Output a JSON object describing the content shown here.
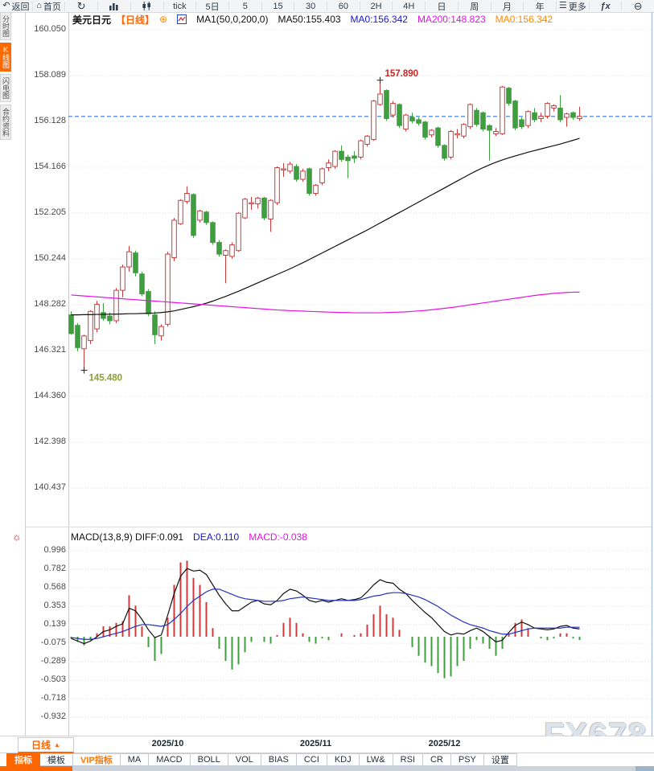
{
  "colors": {
    "accent_orange": "#ff6600",
    "up_red": "#cc3b3b",
    "down_green": "#3f9e3f",
    "ma50_black": "#111111",
    "ma200_magenta": "#e812e8",
    "dea_blue": "#2233bb",
    "diff_black": "#111111",
    "last_price_line_blue": "#2b7ce9",
    "annotation_red": "#cc2222",
    "annotation_olive": "#8f9c3a"
  },
  "toolbar": {
    "back": {
      "icon": "↶",
      "label": "返回"
    },
    "home": {
      "icon": "⌂",
      "label": "首页"
    },
    "refresh_icon": "↻",
    "tick_label": "tick",
    "periods": [
      "5日",
      "5",
      "15",
      "30",
      "60",
      "2H",
      "4H",
      "日",
      "周",
      "月",
      "年"
    ],
    "more": {
      "icon": "☰",
      "label": "更多"
    },
    "fx_label": "ƒx",
    "zoom_out_icon": "⊖"
  },
  "sidebar": {
    "items": [
      {
        "label": "分时图",
        "active": false
      },
      {
        "label": "K线图",
        "active": true
      },
      {
        "label": "闪电图",
        "active": false
      },
      {
        "label": "合约资料",
        "active": false
      }
    ]
  },
  "chart_header": {
    "symbol": "美元日元",
    "period_tag": "【日线】",
    "add_icon": "⊕",
    "ma_settings": "MA1(50,0,200,0)",
    "ma50_label": "MA50:155.403",
    "ma0_blue_label": "MA0:156.342",
    "ma200_label": "MA200:148.823",
    "ma0_orange_label": "MA0:156.342"
  },
  "macd_header": {
    "icon": "☼",
    "formula_and_diff": "MACD(13,8,9) DIFF:0.091",
    "dea_label": "DEA:0.110",
    "macd_label": "MACD:-0.038"
  },
  "axis_strip": {
    "period_box_label": "日线",
    "period_box_arrow": "▲"
  },
  "tabs": {
    "items": [
      {
        "label": "指标",
        "state": "active"
      },
      {
        "label": "模板",
        "state": "normal"
      },
      {
        "label": "VIP指标",
        "state": "vip"
      },
      {
        "label": "MA",
        "state": "normal"
      },
      {
        "label": "MACD",
        "state": "normal"
      },
      {
        "label": "BOLL",
        "state": "normal"
      },
      {
        "label": "VOL",
        "state": "normal"
      },
      {
        "label": "BIAS",
        "state": "normal"
      },
      {
        "label": "CCI",
        "state": "normal"
      },
      {
        "label": "KDJ",
        "state": "normal"
      },
      {
        "label": "LW&",
        "state": "normal"
      },
      {
        "label": "RSI",
        "state": "normal"
      },
      {
        "label": "CR",
        "state": "normal"
      },
      {
        "label": "PSY",
        "state": "normal"
      },
      {
        "label": "设置",
        "state": "normal"
      }
    ]
  },
  "watermark": "FX678",
  "chart_data": [
    {
      "type": "candlestick",
      "title": "美元日元 日线 (USD/JPY daily)",
      "ylim": [
        139.5,
        160.8
      ],
      "price_axis_labels": [
        "160.050",
        "158.089",
        "156.128",
        "154.166",
        "152.205",
        "150.244",
        "148.282",
        "146.321",
        "144.360",
        "142.398",
        "140.437"
      ],
      "last_price": 156.342,
      "x_axis_labels": [
        {
          "label": "2025/10",
          "candle_index": 15
        },
        {
          "label": "2025/11",
          "candle_index": 38
        },
        {
          "label": "2025/12",
          "candle_index": 58
        }
      ],
      "annotations": [
        {
          "text": "157.890",
          "price": 157.89,
          "candle_index": 48,
          "color": "#cc2222",
          "placement": "above"
        },
        {
          "text": "145.480",
          "price": 145.48,
          "candle_index": 2,
          "color": "#8f9c3a",
          "placement": "below"
        }
      ],
      "candles": [
        [
          147.85,
          148.0,
          147.0,
          147.05
        ],
        [
          147.4,
          147.5,
          146.3,
          146.45
        ],
        [
          146.4,
          147.0,
          145.48,
          146.95
        ],
        [
          146.75,
          148.05,
          146.6,
          148.0
        ],
        [
          147.25,
          148.45,
          147.1,
          148.3
        ],
        [
          147.95,
          148.35,
          147.6,
          147.7
        ],
        [
          147.8,
          147.95,
          147.45,
          147.6
        ],
        [
          147.6,
          149.0,
          147.5,
          148.9
        ],
        [
          148.9,
          150.0,
          148.6,
          149.9
        ],
        [
          149.9,
          150.8,
          149.7,
          150.55
        ],
        [
          150.5,
          150.6,
          149.5,
          149.65
        ],
        [
          149.6,
          149.7,
          148.65,
          148.75
        ],
        [
          148.85,
          148.95,
          147.8,
          147.9
        ],
        [
          147.85,
          148.0,
          146.6,
          147.0
        ],
        [
          146.95,
          147.45,
          146.75,
          147.35
        ],
        [
          147.45,
          150.55,
          147.35,
          150.45
        ],
        [
          150.3,
          152.0,
          150.15,
          151.9
        ],
        [
          151.75,
          152.8,
          151.7,
          152.75
        ],
        [
          152.7,
          153.35,
          152.6,
          153.05
        ],
        [
          153.0,
          153.05,
          151.15,
          151.25
        ],
        [
          151.9,
          152.35,
          151.8,
          152.3
        ],
        [
          152.25,
          152.3,
          151.7,
          151.8
        ],
        [
          151.8,
          151.85,
          150.85,
          150.95
        ],
        [
          150.95,
          151.05,
          150.35,
          150.45
        ],
        [
          150.4,
          150.65,
          149.2,
          150.6
        ],
        [
          150.35,
          150.95,
          150.25,
          150.85
        ],
        [
          150.6,
          152.25,
          150.55,
          152.2
        ],
        [
          152.0,
          152.85,
          151.95,
          152.8
        ],
        [
          152.6,
          152.9,
          152.35,
          152.65
        ],
        [
          152.6,
          152.9,
          152.4,
          152.85
        ],
        [
          152.85,
          152.9,
          151.9,
          152.0
        ],
        [
          151.95,
          152.8,
          151.4,
          152.75
        ],
        [
          152.65,
          154.2,
          152.55,
          154.15
        ],
        [
          154.05,
          154.35,
          153.75,
          154.1
        ],
        [
          154.0,
          154.4,
          153.9,
          154.3
        ],
        [
          154.2,
          154.3,
          153.55,
          153.65
        ],
        [
          153.65,
          154.1,
          153.55,
          154.0
        ],
        [
          154.1,
          154.15,
          152.95,
          153.05
        ],
        [
          153.05,
          153.45,
          152.95,
          153.4
        ],
        [
          153.5,
          154.15,
          153.4,
          154.1
        ],
        [
          154.15,
          154.5,
          154.0,
          154.35
        ],
        [
          154.2,
          154.9,
          154.1,
          154.85
        ],
        [
          154.85,
          155.1,
          154.4,
          154.5
        ],
        [
          154.6,
          154.7,
          153.7,
          154.45
        ],
        [
          154.65,
          154.85,
          154.35,
          154.55
        ],
        [
          154.6,
          155.35,
          154.5,
          155.3
        ],
        [
          155.15,
          155.55,
          155.05,
          155.5
        ],
        [
          155.35,
          157.05,
          155.3,
          157.0
        ],
        [
          156.85,
          157.89,
          156.8,
          157.3
        ],
        [
          157.45,
          157.5,
          156.15,
          156.25
        ],
        [
          156.4,
          157.0,
          156.3,
          156.9
        ],
        [
          156.85,
          156.9,
          155.85,
          155.95
        ],
        [
          155.8,
          156.45,
          155.7,
          156.4
        ],
        [
          156.3,
          156.5,
          156.05,
          156.15
        ],
        [
          156.2,
          156.3,
          155.95,
          156.05
        ],
        [
          156.1,
          156.15,
          155.35,
          155.45
        ],
        [
          155.55,
          155.8,
          155.45,
          155.75
        ],
        [
          155.85,
          155.9,
          155.0,
          155.1
        ],
        [
          155.1,
          155.15,
          154.45,
          154.55
        ],
        [
          154.6,
          155.75,
          154.5,
          155.7
        ],
        [
          155.55,
          155.8,
          155.4,
          155.6
        ],
        [
          155.5,
          156.05,
          155.4,
          156.0
        ],
        [
          155.9,
          156.9,
          155.8,
          156.85
        ],
        [
          156.6,
          156.7,
          155.9,
          156.0
        ],
        [
          156.5,
          156.55,
          155.7,
          155.8
        ],
        [
          155.95,
          156.0,
          154.45,
          155.75
        ],
        [
          155.6,
          155.85,
          155.5,
          155.7
        ],
        [
          155.6,
          157.65,
          155.55,
          157.6
        ],
        [
          157.55,
          157.6,
          156.8,
          156.9
        ],
        [
          157.0,
          157.05,
          155.75,
          155.85
        ],
        [
          156.2,
          156.3,
          155.8,
          155.9
        ],
        [
          155.95,
          156.6,
          155.85,
          156.55
        ],
        [
          156.5,
          156.7,
          156.1,
          156.2
        ],
        [
          156.25,
          156.5,
          156.1,
          156.35
        ],
        [
          156.35,
          156.95,
          156.25,
          156.9
        ],
        [
          156.7,
          156.85,
          156.55,
          156.8
        ],
        [
          156.7,
          157.25,
          156.1,
          156.2
        ],
        [
          156.3,
          156.5,
          155.9,
          156.45
        ],
        [
          156.5,
          156.55,
          156.2,
          156.3
        ],
        [
          156.25,
          156.75,
          156.15,
          156.342
        ]
      ],
      "series": [
        {
          "name": "MA50",
          "color": "#111111",
          "values": [
            147.85,
            147.85,
            147.86,
            147.86,
            147.87,
            147.87,
            147.88,
            147.88,
            147.89,
            147.9,
            147.9,
            147.91,
            147.92,
            147.93,
            147.95,
            147.98,
            148.02,
            148.08,
            148.14,
            148.2,
            148.27,
            148.35,
            148.44,
            148.54,
            148.64,
            148.75,
            148.86,
            148.98,
            149.1,
            149.22,
            149.34,
            149.46,
            149.58,
            149.7,
            149.82,
            149.95,
            150.08,
            150.22,
            150.36,
            150.5,
            150.64,
            150.78,
            150.92,
            151.06,
            151.2,
            151.34,
            151.48,
            151.63,
            151.78,
            151.93,
            152.08,
            152.23,
            152.38,
            152.53,
            152.68,
            152.83,
            152.98,
            153.13,
            153.28,
            153.43,
            153.58,
            153.73,
            153.88,
            154.02,
            154.15,
            154.27,
            154.38,
            154.48,
            154.57,
            154.65,
            154.73,
            154.81,
            154.88,
            154.95,
            155.02,
            155.09,
            155.16,
            155.24,
            155.32,
            155.403
          ]
        },
        {
          "name": "MA200",
          "color": "#e812e8",
          "values": [
            148.7,
            148.68,
            148.66,
            148.64,
            148.62,
            148.6,
            148.58,
            148.56,
            148.54,
            148.52,
            148.5,
            148.48,
            148.46,
            148.44,
            148.42,
            148.4,
            148.38,
            148.36,
            148.34,
            148.32,
            148.3,
            148.28,
            148.26,
            148.24,
            148.22,
            148.2,
            148.18,
            148.16,
            148.14,
            148.12,
            148.1,
            148.08,
            148.06,
            148.05,
            148.03,
            148.02,
            148.01,
            148.0,
            147.99,
            147.98,
            147.97,
            147.96,
            147.95,
            147.95,
            147.94,
            147.94,
            147.94,
            147.94,
            147.94,
            147.95,
            147.96,
            147.97,
            147.98,
            148.0,
            148.02,
            148.04,
            148.07,
            148.1,
            148.13,
            148.16,
            148.2,
            148.24,
            148.28,
            148.32,
            148.36,
            148.4,
            148.44,
            148.48,
            148.52,
            148.56,
            148.6,
            148.64,
            148.68,
            148.71,
            148.74,
            148.77,
            148.79,
            148.81,
            148.82,
            148.823
          ]
        }
      ]
    },
    {
      "type": "macd",
      "title": "MACD(13,8,9)",
      "axis_labels": [
        "0.996",
        "0.782",
        "0.568",
        "0.353",
        "0.139",
        "-0.075",
        "-0.289",
        "-0.503",
        "-0.718",
        "-0.932"
      ],
      "histogram_rule": "2*(DIFF-DEA)",
      "last_values": {
        "diff": 0.091,
        "dea": 0.11,
        "macd": -0.038
      },
      "series": [
        {
          "name": "DIFF",
          "color": "#111111",
          "values": [
            -0.02,
            -0.05,
            -0.08,
            -0.05,
            0.0,
            0.06,
            0.08,
            0.12,
            0.15,
            0.33,
            0.3,
            0.2,
            0.08,
            -0.01,
            0.02,
            0.25,
            0.5,
            0.7,
            0.79,
            0.76,
            0.77,
            0.72,
            0.6,
            0.48,
            0.38,
            0.3,
            0.3,
            0.35,
            0.4,
            0.42,
            0.38,
            0.37,
            0.42,
            0.5,
            0.55,
            0.53,
            0.48,
            0.42,
            0.4,
            0.42,
            0.4,
            0.42,
            0.44,
            0.42,
            0.43,
            0.45,
            0.52,
            0.6,
            0.66,
            0.63,
            0.62,
            0.55,
            0.5,
            0.42,
            0.35,
            0.28,
            0.22,
            0.14,
            0.06,
            0.02,
            0.04,
            0.03,
            0.07,
            0.1,
            0.06,
            0.0,
            -0.06,
            -0.04,
            0.05,
            0.13,
            0.17,
            0.14,
            0.1,
            0.09,
            0.08,
            0.09,
            0.12,
            0.13,
            0.1,
            0.091
          ]
        },
        {
          "name": "DEA",
          "color": "#2233bb",
          "values": [
            -0.01,
            -0.02,
            -0.03,
            -0.03,
            -0.02,
            0.0,
            0.02,
            0.04,
            0.06,
            0.09,
            0.12,
            0.14,
            0.14,
            0.13,
            0.12,
            0.14,
            0.2,
            0.27,
            0.35,
            0.42,
            0.47,
            0.52,
            0.55,
            0.55,
            0.52,
            0.49,
            0.46,
            0.44,
            0.43,
            0.42,
            0.41,
            0.41,
            0.41,
            0.42,
            0.44,
            0.45,
            0.46,
            0.45,
            0.44,
            0.43,
            0.42,
            0.42,
            0.42,
            0.42,
            0.42,
            0.43,
            0.45,
            0.47,
            0.48,
            0.5,
            0.51,
            0.51,
            0.5,
            0.48,
            0.46,
            0.43,
            0.39,
            0.35,
            0.3,
            0.25,
            0.21,
            0.17,
            0.14,
            0.12,
            0.1,
            0.07,
            0.05,
            0.03,
            0.03,
            0.05,
            0.07,
            0.09,
            0.1,
            0.1,
            0.1,
            0.1,
            0.1,
            0.11,
            0.11,
            0.11
          ]
        }
      ]
    }
  ]
}
